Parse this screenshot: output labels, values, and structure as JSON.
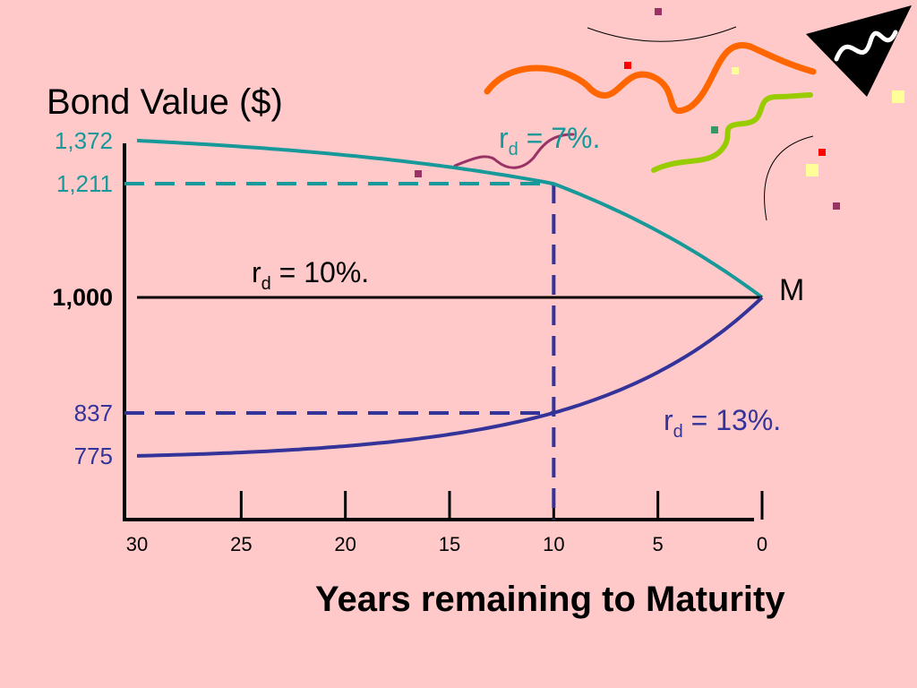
{
  "colors": {
    "background": "#ffc9c9",
    "axis": "#000000",
    "premium": "#17999a",
    "discount": "#333399",
    "par": "#000000",
    "confetti_orange": "#ff6600",
    "confetti_green": "#99cc00",
    "confetti_purple": "#993366"
  },
  "chart_data": {
    "type": "line",
    "title": "",
    "ylabel": "Bond Value ($)",
    "xlabel": "Years remaining to Maturity",
    "x_ticks": [
      "30",
      "25",
      "20",
      "15",
      "10",
      "5",
      "0"
    ],
    "x_reversed": true,
    "xlim": [
      0,
      30
    ],
    "ylim": [
      700,
      1372
    ],
    "y_tick_labels": [
      {
        "value": 1372,
        "label": "1,372",
        "series": "premium"
      },
      {
        "value": 1211,
        "label": "1,211",
        "series": "premium"
      },
      {
        "value": 1000,
        "label": "1,000",
        "series": "par"
      },
      {
        "value": 837,
        "label": "837",
        "series": "discount"
      },
      {
        "value": 775,
        "label": "775",
        "series": "discount"
      }
    ],
    "series": [
      {
        "key": "premium",
        "label_main": "r",
        "label_sub": "d",
        "label_rest": " = 7%.",
        "rate": 0.07,
        "x": [
          30,
          25,
          20,
          15,
          10,
          5,
          0
        ],
        "values": [
          1372,
          1350,
          1318,
          1273,
          1211,
          1123,
          1000
        ]
      },
      {
        "key": "par",
        "label_main": "r",
        "label_sub": "d",
        "label_rest": " = 10%.",
        "rate": 0.1,
        "x": [
          30,
          0
        ],
        "values": [
          1000,
          1000
        ]
      },
      {
        "key": "discount",
        "label_main": "r",
        "label_sub": "d",
        "label_rest": " = 13%.",
        "rate": 0.13,
        "x": [
          30,
          25,
          20,
          15,
          10,
          5,
          0
        ],
        "values": [
          775,
          780,
          789,
          806,
          837,
          894,
          1000
        ]
      }
    ],
    "reference_x": 10,
    "maturity_label": "M",
    "grid": false,
    "legend": "none"
  }
}
